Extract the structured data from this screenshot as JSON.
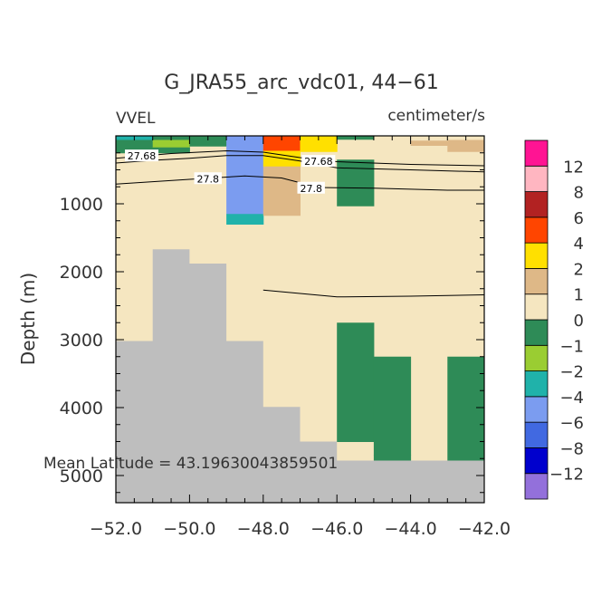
{
  "chart_data": {
    "type": "heatmap",
    "title": "G_JRA55_arc_vdc01, 44−61",
    "variable": "VVEL",
    "units": "centimeter/s",
    "ylabel": "Depth (m)",
    "annotation": "Mean Latitude = 43.19630043859501",
    "xlim": [
      -52.0,
      -42.0
    ],
    "ylim": [
      5400,
      0
    ],
    "x_ticks": [
      -52.0,
      -50.0,
      -48.0,
      -46.0,
      -44.0,
      -42.0
    ],
    "x_tick_labels": [
      "−52.0",
      "−50.0",
      "−48.0",
      "−46.0",
      "−44.0",
      "−42.0"
    ],
    "y_ticks": [
      1000,
      2000,
      3000,
      4000,
      5000
    ],
    "y_tick_labels": [
      "1000",
      "2000",
      "3000",
      "4000",
      "5000"
    ],
    "colorbar": {
      "colors": [
        "#9370DB",
        "#0000CD",
        "#4169E1",
        "#7B9CF0",
        "#20B2AA",
        "#9ACD32",
        "#2E8B57",
        "#F5E6C0",
        "#DEB887",
        "#FFE000",
        "#FF4500",
        "#B22222",
        "#FFB6C1",
        "#FF1493"
      ],
      "labels": [
        "−12",
        "−8",
        "−6",
        "−4",
        "−2",
        "−1",
        "0",
        "1",
        "2",
        "4",
        "6",
        "8",
        "12"
      ]
    },
    "background_color": "#F5E6C0",
    "land_color": "#BEBEBE",
    "cells": [
      {
        "x0": -52.0,
        "x1": -51.0,
        "y0": 0,
        "y1": 60,
        "color": "#20B2AA"
      },
      {
        "x0": -52.0,
        "x1": -51.0,
        "y0": 60,
        "y1": 250,
        "color": "#2E8B57"
      },
      {
        "x0": -51.0,
        "x1": -50.0,
        "y0": 0,
        "y1": 60,
        "color": "#2E8B57"
      },
      {
        "x0": -51.0,
        "x1": -50.0,
        "y0": 60,
        "y1": 170,
        "color": "#9ACD32"
      },
      {
        "x0": -51.0,
        "x1": -50.0,
        "y0": 170,
        "y1": 250,
        "color": "#2E8B57"
      },
      {
        "x0": -50.0,
        "x1": -49.0,
        "y0": 0,
        "y1": 150,
        "color": "#2E8B57"
      },
      {
        "x0": -49.0,
        "x1": -48.0,
        "y0": 0,
        "y1": 1150,
        "color": "#7B9CF0"
      },
      {
        "x0": -49.0,
        "x1": -48.0,
        "y0": 1150,
        "y1": 1300,
        "color": "#20B2AA"
      },
      {
        "x0": -48.0,
        "x1": -47.0,
        "y0": 0,
        "y1": 220,
        "color": "#FF4500"
      },
      {
        "x0": -48.0,
        "x1": -47.0,
        "y0": 220,
        "y1": 450,
        "color": "#FFE000"
      },
      {
        "x0": -48.0,
        "x1": -47.0,
        "y0": 450,
        "y1": 1170,
        "color": "#DEB887"
      },
      {
        "x0": -47.0,
        "x1": -46.0,
        "y0": 0,
        "y1": 230,
        "color": "#FFE000"
      },
      {
        "x0": -46.0,
        "x1": -45.0,
        "y0": 0,
        "y1": 50,
        "color": "#2E8B57"
      },
      {
        "x0": -46.0,
        "x1": -45.0,
        "y0": 350,
        "y1": 1030,
        "color": "#2E8B57"
      },
      {
        "x0": -44.0,
        "x1": -43.0,
        "y0": 70,
        "y1": 140,
        "color": "#DEB887"
      },
      {
        "x0": -43.0,
        "x1": -42.0,
        "y0": 60,
        "y1": 230,
        "color": "#DEB887"
      },
      {
        "x0": -46.0,
        "x1": -45.0,
        "y0": 2750,
        "y1": 4500,
        "color": "#2E8B57"
      },
      {
        "x0": -45.0,
        "x1": -44.0,
        "y0": 3250,
        "y1": 4700,
        "color": "#2E8B57"
      },
      {
        "x0": -45.0,
        "x1": -44.0,
        "y0": 4700,
        "y1": 4780,
        "color": "#2E8B57"
      },
      {
        "x0": -43.0,
        "x1": -42.0,
        "y0": 3250,
        "y1": 4780,
        "color": "#2E8B57"
      }
    ],
    "land_steps": [
      {
        "x0": -52.0,
        "x1": -51.0,
        "top": 3020
      },
      {
        "x0": -51.0,
        "x1": -50.0,
        "top": 1670
      },
      {
        "x0": -50.0,
        "x1": -49.0,
        "top": 1880
      },
      {
        "x0": -49.0,
        "x1": -48.0,
        "top": 3020
      },
      {
        "x0": -48.0,
        "x1": -47.0,
        "top": 3990
      },
      {
        "x0": -47.0,
        "x1": -46.0,
        "top": 4500
      },
      {
        "x0": -46.0,
        "x1": -45.0,
        "top": 4780
      },
      {
        "x0": -45.0,
        "x1": -44.0,
        "top": 4780
      },
      {
        "x0": -44.0,
        "x1": -43.0,
        "top": 4780
      },
      {
        "x0": -43.0,
        "x1": -42.0,
        "top": 4780
      }
    ],
    "contours": [
      {
        "label": "27.68",
        "points": [
          [
            -52.0,
            330
          ],
          [
            -50.5,
            260
          ],
          [
            -49.0,
            220
          ],
          [
            -48.0,
            240
          ],
          [
            -47.0,
            320
          ],
          [
            -46.0,
            380
          ],
          [
            -44.0,
            420
          ],
          [
            -42.0,
            440
          ]
        ]
      },
      {
        "label": "27.68",
        "points": [
          [
            -52.0,
            400
          ],
          [
            -51.0,
            360
          ],
          [
            -50.0,
            330
          ],
          [
            -49.0,
            290
          ],
          [
            -48.0,
            290
          ],
          [
            -47.0,
            370
          ],
          [
            -46.0,
            470
          ],
          [
            -44.0,
            500
          ],
          [
            -42.0,
            530
          ]
        ]
      },
      {
        "label": "27.8",
        "points": [
          [
            -52.0,
            710
          ],
          [
            -50.0,
            640
          ],
          [
            -48.5,
            590
          ],
          [
            -47.5,
            620
          ],
          [
            -46.5,
            760
          ],
          [
            -45.0,
            770
          ],
          [
            -43.0,
            800
          ],
          [
            -42.0,
            800
          ]
        ]
      },
      {
        "label": "",
        "points": [
          [
            -48.0,
            2270
          ],
          [
            -47.0,
            2320
          ],
          [
            -46.0,
            2370
          ],
          [
            -44.0,
            2360
          ],
          [
            -42.0,
            2340
          ]
        ]
      }
    ],
    "contour_labels": [
      {
        "text": "27.68",
        "x": -51.3,
        "y": 295
      },
      {
        "text": "27.68",
        "x": -46.5,
        "y": 375
      },
      {
        "text": "27.8",
        "x": -49.5,
        "y": 630
      },
      {
        "text": "27.8",
        "x": -46.7,
        "y": 770
      }
    ]
  }
}
